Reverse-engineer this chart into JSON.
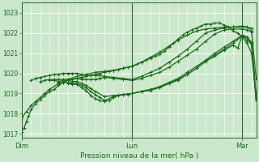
{
  "xlabel": "Pression niveau de la mer( hPa )",
  "bg_color": "#cce8cc",
  "plot_bg_color": "#cce8cc",
  "grid_color": "#ffffff",
  "line_color": "#1a6b1a",
  "spine_color": "#336633",
  "ylim": [
    1016.8,
    1023.5
  ],
  "yticks": [
    1017,
    1018,
    1019,
    1020,
    1021,
    1022,
    1023
  ],
  "xlim": [
    0,
    51
  ],
  "day_labels": [
    "Dim",
    "Lun",
    "Mar"
  ],
  "day_positions": [
    0,
    24,
    48
  ],
  "vline_positions": [
    0,
    24,
    48
  ],
  "series": [
    {
      "x": [
        0,
        0.5,
        1,
        1.5,
        2,
        3,
        4,
        5,
        6,
        7,
        8,
        9,
        10,
        11,
        12,
        13,
        14,
        15,
        16,
        17,
        18,
        19,
        20,
        21,
        22,
        23,
        24,
        25,
        26,
        27,
        28,
        29,
        30,
        31,
        32,
        33,
        34,
        35,
        36,
        37,
        38,
        39,
        40,
        41,
        42,
        43,
        44,
        45,
        46,
        47,
        48,
        49,
        50,
        51
      ],
      "y": [
        1017.1,
        1017.3,
        1017.6,
        1017.9,
        1018.2,
        1018.5,
        1018.7,
        1018.9,
        1019.1,
        1019.2,
        1019.4,
        1019.55,
        1019.65,
        1019.7,
        1019.75,
        1019.8,
        1019.85,
        1019.9,
        1019.95,
        1020.0,
        1020.05,
        1020.1,
        1020.15,
        1020.2,
        1020.25,
        1020.3,
        1020.35,
        1020.45,
        1020.55,
        1020.65,
        1020.75,
        1020.85,
        1020.95,
        1021.1,
        1021.3,
        1021.5,
        1021.7,
        1021.9,
        1022.05,
        1022.15,
        1022.25,
        1022.35,
        1022.45,
        1022.45,
        1022.5,
        1022.5,
        1022.4,
        1022.3,
        1022.1,
        1022.0,
        1021.8,
        1021.5,
        1021.0,
        1018.7
      ]
    },
    {
      "x": [
        0,
        1,
        2,
        3,
        4,
        5,
        6,
        8,
        10,
        12,
        14,
        16,
        18,
        20,
        22,
        24,
        26,
        28,
        30,
        32,
        34,
        36,
        38,
        40,
        42,
        44,
        46,
        48,
        50
      ],
      "y": [
        1017.8,
        1018.1,
        1018.4,
        1018.6,
        1018.8,
        1019.0,
        1019.2,
        1019.5,
        1019.7,
        1019.85,
        1019.95,
        1020.05,
        1020.1,
        1020.15,
        1020.25,
        1020.35,
        1020.55,
        1020.8,
        1021.05,
        1021.35,
        1021.65,
        1021.9,
        1022.1,
        1022.2,
        1022.25,
        1022.3,
        1022.3,
        1022.3,
        1022.25
      ]
    },
    {
      "x": [
        2,
        3,
        4,
        5,
        6,
        7,
        8,
        9,
        10,
        11,
        12,
        13,
        14,
        15,
        16,
        17,
        18,
        20,
        22,
        24,
        26,
        28,
        30,
        32,
        34,
        36,
        38,
        40,
        42,
        44,
        46,
        48,
        49,
        50
      ],
      "y": [
        1019.65,
        1019.75,
        1019.8,
        1019.85,
        1019.9,
        1019.95,
        1019.95,
        1020.0,
        1020.0,
        1020.0,
        1020.0,
        1019.95,
        1019.9,
        1019.9,
        1019.9,
        1019.9,
        1019.85,
        1019.8,
        1019.75,
        1019.7,
        1019.85,
        1020.05,
        1020.25,
        1020.55,
        1020.85,
        1021.2,
        1021.6,
        1022.0,
        1022.15,
        1022.25,
        1022.3,
        1022.35,
        1022.3,
        1022.1
      ]
    },
    {
      "x": [
        4,
        5,
        6,
        7,
        8,
        9,
        10,
        11,
        12,
        13,
        14,
        15,
        16,
        17,
        18,
        20,
        22,
        24,
        26,
        28,
        30,
        32,
        34,
        36,
        38,
        40,
        42,
        44,
        46,
        48,
        49,
        50,
        51
      ],
      "y": [
        1019.6,
        1019.65,
        1019.7,
        1019.7,
        1019.7,
        1019.7,
        1019.7,
        1019.7,
        1019.75,
        1019.7,
        1019.7,
        1019.7,
        1019.7,
        1019.75,
        1019.8,
        1019.75,
        1019.7,
        1019.65,
        1019.75,
        1019.9,
        1020.05,
        1020.3,
        1020.6,
        1020.9,
        1021.2,
        1021.6,
        1021.95,
        1022.15,
        1022.2,
        1022.2,
        1022.15,
        1022.05,
        1019.7
      ]
    },
    {
      "x": [
        6,
        7,
        8,
        9,
        10,
        11,
        12,
        13,
        14,
        15,
        16,
        18,
        20,
        22,
        24,
        26,
        28,
        30,
        32,
        34,
        36,
        38,
        40,
        42,
        44,
        46,
        48,
        49,
        50,
        51
      ],
      "y": [
        1019.65,
        1019.65,
        1019.6,
        1019.65,
        1019.65,
        1019.6,
        1019.6,
        1019.5,
        1019.4,
        1019.25,
        1019.1,
        1018.85,
        1018.9,
        1018.95,
        1019.0,
        1019.1,
        1019.2,
        1019.35,
        1019.55,
        1019.75,
        1020.05,
        1020.35,
        1020.65,
        1021.0,
        1021.3,
        1021.6,
        1021.9,
        1021.8,
        1021.55,
        1018.8
      ]
    },
    {
      "x": [
        8,
        9,
        10,
        11,
        12,
        13,
        14,
        15,
        16,
        17,
        18,
        20,
        22,
        24,
        26,
        28,
        30,
        32,
        34,
        36,
        38,
        40,
        42,
        44,
        46,
        48,
        49,
        50,
        51
      ],
      "y": [
        1019.55,
        1019.55,
        1019.55,
        1019.5,
        1019.5,
        1019.4,
        1019.3,
        1019.1,
        1018.95,
        1018.8,
        1018.65,
        1018.85,
        1018.95,
        1019.0,
        1019.1,
        1019.2,
        1019.3,
        1019.5,
        1019.7,
        1019.95,
        1020.25,
        1020.6,
        1020.9,
        1021.2,
        1021.5,
        1021.85,
        1021.8,
        1021.45,
        1018.75
      ]
    },
    {
      "x": [
        10,
        11,
        12,
        13,
        14,
        15,
        16,
        17,
        18,
        19,
        20,
        21,
        22,
        23,
        24,
        26,
        28,
        30,
        32,
        34,
        36,
        38,
        40,
        42,
        44,
        46,
        47,
        48,
        49,
        50,
        51
      ],
      "y": [
        1019.5,
        1019.45,
        1019.45,
        1019.3,
        1019.15,
        1018.9,
        1018.75,
        1018.65,
        1018.6,
        1018.65,
        1018.8,
        1018.9,
        1018.95,
        1018.95,
        1019.0,
        1019.1,
        1019.15,
        1019.3,
        1019.5,
        1019.65,
        1019.95,
        1020.25,
        1020.6,
        1020.85,
        1021.15,
        1021.4,
        1021.25,
        1021.9,
        1021.65,
        1021.45,
        1018.65
      ]
    }
  ],
  "marker": "+",
  "markersize": 3,
  "linewidth": 0.9,
  "fontsize_yticks": 5.5,
  "fontsize_xticks": 6.0,
  "fontsize_xlabel": 6.5
}
